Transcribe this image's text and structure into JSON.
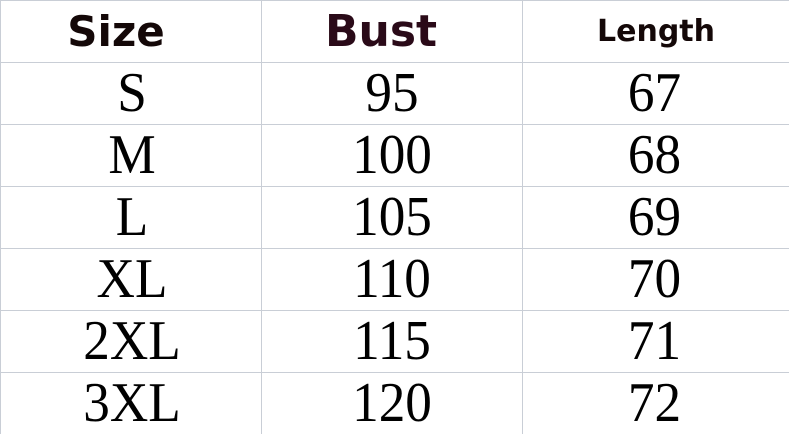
{
  "headers": [
    "Size",
    "Bust",
    "Length"
  ],
  "rows": [
    [
      "S",
      "95",
      "67"
    ],
    [
      "M",
      "100",
      "68"
    ],
    [
      "L",
      "105",
      "69"
    ],
    [
      "XL",
      "110",
      "70"
    ],
    [
      "2XL",
      "115",
      "71"
    ],
    [
      "3XL",
      "120",
      "72"
    ]
  ],
  "colors": {
    "header_text": "#140808",
    "bust_header_text": "#2a0a18",
    "grid": "#c9ced6"
  }
}
